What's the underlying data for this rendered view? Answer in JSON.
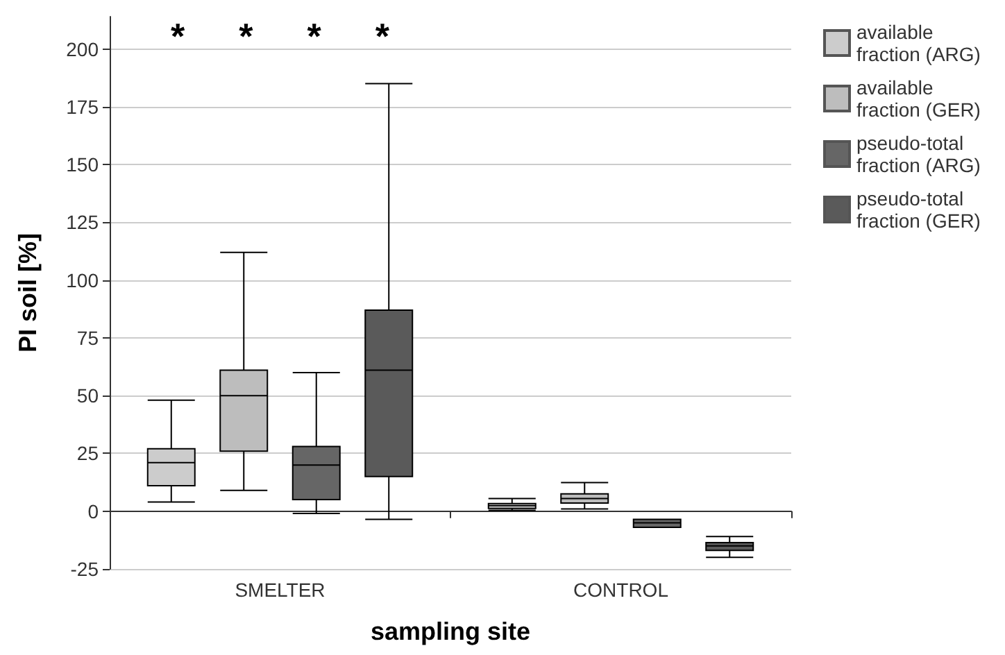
{
  "chart_data": {
    "type": "box",
    "xlabel": "sampling site",
    "ylabel": "PI soil [%]",
    "categories": [
      "SMELTER",
      "CONTROL"
    ],
    "ylim": [
      -25,
      214
    ],
    "yticks": [
      -25,
      0,
      25,
      50,
      75,
      100,
      125,
      150,
      175,
      200
    ],
    "grid": "y",
    "legend": "right",
    "series": [
      {
        "name": "available fraction (ARG)",
        "color": "#cccccc",
        "boxes": [
          {
            "low": 4,
            "q1": 11,
            "median": 21,
            "q3": 27,
            "high": 48
          },
          {
            "low": 0.4,
            "q1": 1.2,
            "median": 2.4,
            "q3": 3.3,
            "high": 5.5
          }
        ]
      },
      {
        "name": "available fraction (GER)",
        "color": "#bdbdbd",
        "boxes": [
          {
            "low": 9,
            "q1": 26,
            "median": 50,
            "q3": 61,
            "high": 112
          },
          {
            "low": 1,
            "q1": 3.5,
            "median": 5.5,
            "q3": 7.5,
            "high": 12.4
          }
        ]
      },
      {
        "name": "pseudo-total fraction (ARG)",
        "color": "#666666",
        "boxes": [
          {
            "low": -1,
            "q1": 5,
            "median": 20,
            "q3": 28,
            "high": 60
          },
          {
            "low": -7,
            "q1": -7,
            "median": -5,
            "q3": -3.5,
            "high": -3.5
          }
        ]
      },
      {
        "name": "pseudo-total fraction (GER)",
        "color": "#5a5a5a",
        "boxes": [
          {
            "low": -3.5,
            "q1": 15,
            "median": 61,
            "q3": 87,
            "high": 185
          },
          {
            "low": -20,
            "q1": -17,
            "median": -15,
            "q3": -13.6,
            "high": -11
          }
        ]
      }
    ],
    "annotations": [
      "*",
      "*",
      "*",
      "*"
    ]
  }
}
